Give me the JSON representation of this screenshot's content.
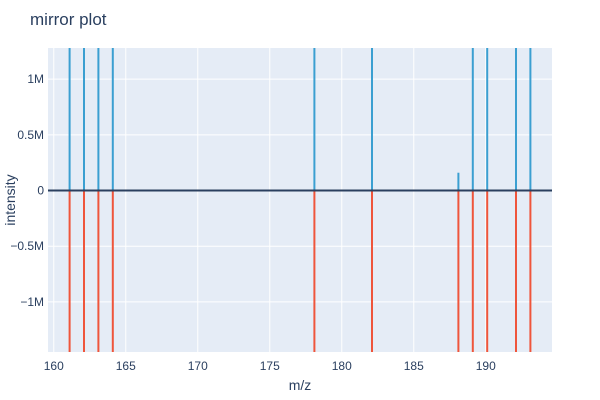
{
  "chart_data": {
    "type": "bar",
    "title": "mirror plot",
    "xlabel": "m/z",
    "ylabel": "intensity",
    "xlim": [
      159.6,
      194.6
    ],
    "ylim": [
      -1450000,
      1280000
    ],
    "xticks": [
      160,
      165,
      170,
      175,
      180,
      185,
      190
    ],
    "xtick_labels": [
      "160",
      "165",
      "170",
      "175",
      "180",
      "185",
      "190"
    ],
    "yticks": [
      -1000000,
      -500000,
      0,
      500000,
      1000000
    ],
    "ytick_labels": [
      "−1M",
      "−0.5M",
      "0",
      "0.5M",
      "1M"
    ],
    "grid": true,
    "colors": {
      "upper": "#3b9fd1",
      "lower": "#ef553b",
      "zero_line": "#2a3f5f",
      "plot_bg": "#e5ecf6"
    },
    "series": [
      {
        "x": [
          161.1,
          162.1,
          163.1,
          164.1,
          178.1,
          182.1,
          188.1,
          189.1,
          190.1,
          192.1,
          193.1
        ],
        "values": [
          1280000,
          1280000,
          1280000,
          1280000,
          1280000,
          1280000,
          160000,
          1280000,
          1280000,
          1280000,
          1280000
        ]
      },
      {
        "x": [
          161.1,
          162.1,
          163.1,
          164.1,
          178.1,
          182.1,
          188.1,
          189.1,
          190.1,
          192.1,
          193.1
        ],
        "values": [
          -1450000,
          -1450000,
          -1450000,
          -1450000,
          -1450000,
          -1450000,
          -1450000,
          -1450000,
          -1450000,
          -1450000,
          -1450000
        ]
      }
    ]
  }
}
